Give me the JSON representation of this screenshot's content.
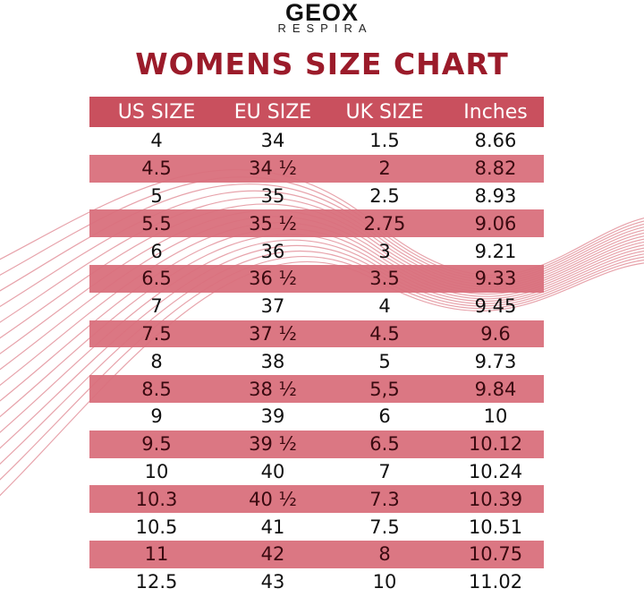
{
  "brand": {
    "name": "GEOX",
    "sub": "RESPIRA"
  },
  "colors": {
    "title": "#9b1b2a",
    "header": "#c9505e",
    "band": "#d9707c"
  },
  "chart_data": {
    "type": "table",
    "title": "WOMENS SIZE CHART",
    "columns": [
      "US SIZE",
      "EU SIZE",
      "UK SIZE",
      "Inches"
    ],
    "rows": [
      [
        "4",
        "34",
        "1.5",
        "8.66"
      ],
      [
        "4.5",
        "34 ½",
        "2",
        "8.82"
      ],
      [
        "5",
        "35",
        "2.5",
        "8.93"
      ],
      [
        "5.5",
        "35 ½",
        "2.75",
        "9.06"
      ],
      [
        "6",
        "36",
        "3",
        "9.21"
      ],
      [
        "6.5",
        "36 ½",
        "3.5",
        "9.33"
      ],
      [
        "7",
        "37",
        "4",
        "9.45"
      ],
      [
        "7.5",
        "37 ½",
        "4.5",
        "9.6"
      ],
      [
        "8",
        "38",
        "5",
        "9.73"
      ],
      [
        "8.5",
        "38 ½",
        "5,5",
        "9.84"
      ],
      [
        "9",
        "39",
        "6",
        "10"
      ],
      [
        "9.5",
        "39 ½",
        "6.5",
        "10.12"
      ],
      [
        "10",
        "40",
        "7",
        "10.24"
      ],
      [
        "10.3",
        "40 ½",
        "7.3",
        "10.39"
      ],
      [
        "10.5",
        "41",
        "7.5",
        "10.51"
      ],
      [
        "11",
        "42",
        "8",
        "10.75"
      ],
      [
        "12.5",
        "43",
        "10",
        "11.02"
      ]
    ]
  }
}
